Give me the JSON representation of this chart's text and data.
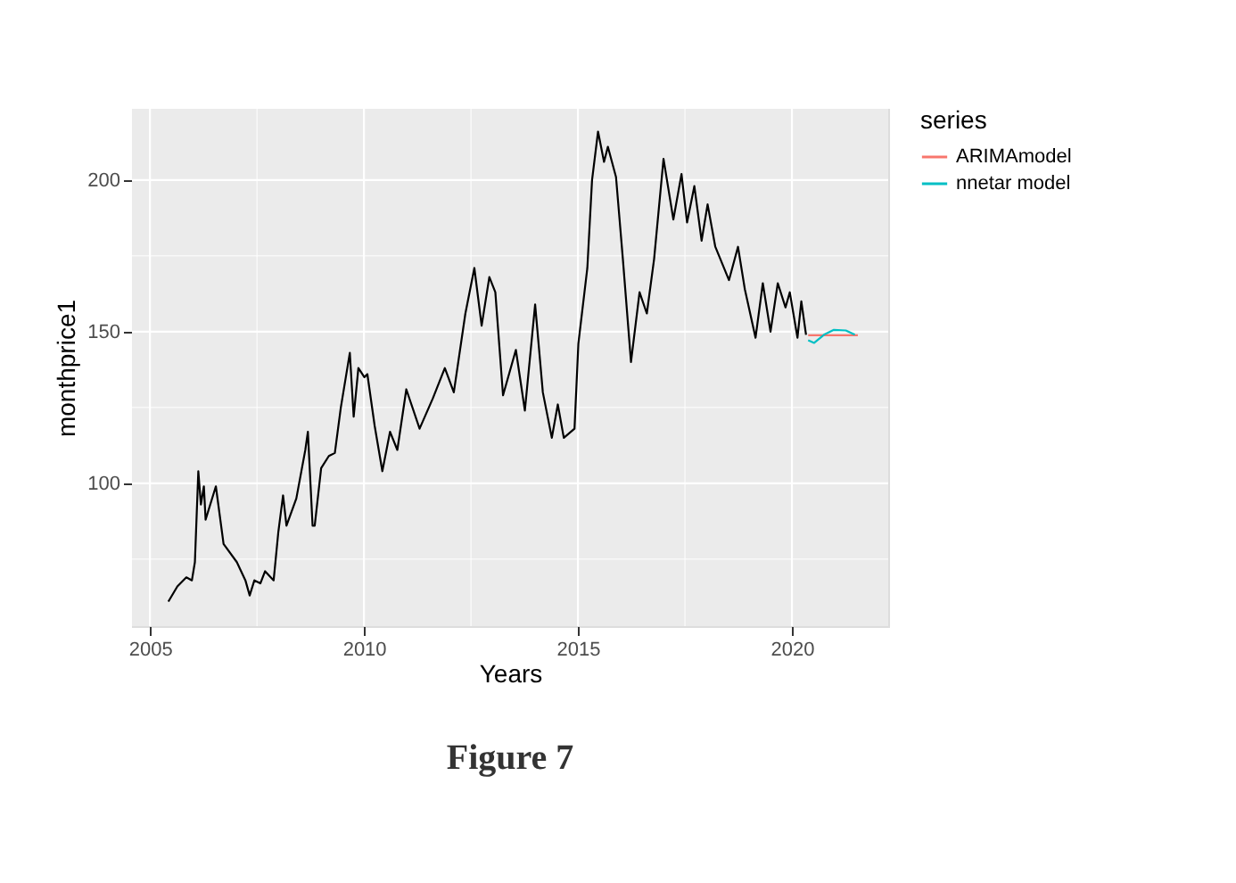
{
  "chart_data": {
    "type": "line",
    "xlabel": "Years",
    "ylabel": "monthprice1",
    "legend_title": "series",
    "legend": "right",
    "grid": true,
    "line_style": "solid",
    "marker": "none",
    "xlim": [
      2004.58,
      2022.25
    ],
    "ylim": [
      52.9,
      223.5
    ],
    "xticks": [
      2005,
      2010,
      2015,
      2020
    ],
    "yticks": [
      100,
      150,
      200
    ],
    "annotations": [
      "Figure 7"
    ],
    "series": [
      {
        "color": "#000000",
        "x": [
          2005.43,
          2005.64,
          2005.85,
          2005.98,
          2006.05,
          2006.13,
          2006.19,
          2006.26,
          2006.3,
          2006.54,
          2006.72,
          2007.03,
          2007.23,
          2007.33,
          2007.44,
          2007.58,
          2007.69,
          2007.89,
          2008.0,
          2008.11,
          2008.19,
          2008.42,
          2008.63,
          2008.69,
          2008.8,
          2008.85,
          2009.0,
          2009.18,
          2009.32,
          2009.46,
          2009.67,
          2009.76,
          2009.87,
          2010.01,
          2010.08,
          2010.25,
          2010.43,
          2010.61,
          2010.78,
          2010.99,
          2011.3,
          2011.61,
          2011.89,
          2012.1,
          2012.37,
          2012.58,
          2012.75,
          2012.93,
          2013.07,
          2013.25,
          2013.55,
          2013.76,
          2014.0,
          2014.18,
          2014.39,
          2014.53,
          2014.67,
          2014.92,
          2015.01,
          2015.22,
          2015.33,
          2015.47,
          2015.61,
          2015.7,
          2015.89,
          2016.05,
          2016.24,
          2016.44,
          2016.61,
          2016.78,
          2017.0,
          2017.23,
          2017.42,
          2017.55,
          2017.72,
          2017.89,
          2018.03,
          2018.21,
          2018.53,
          2018.74,
          2018.9,
          2019.15,
          2019.32,
          2019.5,
          2019.67,
          2019.85,
          2019.95,
          2020.13,
          2020.22,
          2020.33
        ],
        "values": [
          61,
          66,
          69,
          68,
          74,
          104,
          93,
          99,
          88,
          99,
          80,
          74,
          68,
          63,
          68,
          67,
          71,
          68,
          84,
          96,
          86,
          95,
          111,
          117,
          86,
          86,
          105,
          109,
          110,
          125,
          143,
          122,
          138,
          135,
          136,
          119,
          104,
          117,
          111,
          131,
          118,
          128,
          138,
          130,
          156,
          171,
          152,
          168,
          163,
          129,
          144,
          124,
          159,
          130,
          115,
          126,
          115,
          118,
          146,
          171,
          200,
          216,
          206,
          211,
          201,
          174,
          140,
          163,
          156,
          174,
          207,
          187,
          202,
          186,
          198,
          180,
          192,
          178,
          167,
          178,
          164,
          148,
          166,
          150,
          166,
          158,
          163,
          148,
          160,
          149
        ]
      },
      {
        "name": "ARIMAmodel",
        "color": "#F8766D",
        "x": [
          2020.38,
          2021.54
        ],
        "values": [
          148.8,
          148.8
        ]
      },
      {
        "name": "nnetar model",
        "color": "#00BFC4",
        "x": [
          2020.38,
          2020.52,
          2020.75,
          2020.98,
          2021.26,
          2021.47
        ],
        "values": [
          147.2,
          146.3,
          149,
          150.6,
          150.4,
          149
        ]
      }
    ]
  }
}
